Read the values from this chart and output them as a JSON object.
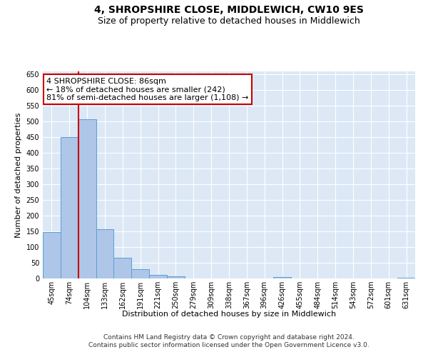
{
  "title": "4, SHROPSHIRE CLOSE, MIDDLEWICH, CW10 9ES",
  "subtitle": "Size of property relative to detached houses in Middlewich",
  "xlabel": "Distribution of detached houses by size in Middlewich",
  "ylabel": "Number of detached properties",
  "footer_line1": "Contains HM Land Registry data © Crown copyright and database right 2024.",
  "footer_line2": "Contains public sector information licensed under the Open Government Licence v3.0.",
  "categories": [
    "45sqm",
    "74sqm",
    "104sqm",
    "133sqm",
    "162sqm",
    "191sqm",
    "221sqm",
    "250sqm",
    "279sqm",
    "309sqm",
    "338sqm",
    "367sqm",
    "396sqm",
    "426sqm",
    "455sqm",
    "484sqm",
    "514sqm",
    "543sqm",
    "572sqm",
    "601sqm",
    "631sqm"
  ],
  "values": [
    148,
    450,
    507,
    158,
    67,
    30,
    12,
    7,
    0,
    0,
    0,
    0,
    0,
    5,
    0,
    0,
    0,
    0,
    0,
    0,
    3
  ],
  "bar_color": "#aec6e8",
  "bar_edge_color": "#5a9fd4",
  "vline_x": 1.5,
  "vline_color": "#cc0000",
  "annotation_line1": "4 SHROPSHIRE CLOSE: 86sqm",
  "annotation_line2": "← 18% of detached houses are smaller (242)",
  "annotation_line3": "81% of semi-detached houses are larger (1,108) →",
  "annotation_box_color": "#cc0000",
  "ylim": [
    0,
    660
  ],
  "yticks": [
    0,
    50,
    100,
    150,
    200,
    250,
    300,
    350,
    400,
    450,
    500,
    550,
    600,
    650
  ],
  "background_color": "#dce8f5",
  "grid_color": "#ffffff",
  "title_fontsize": 10,
  "subtitle_fontsize": 9,
  "ylabel_fontsize": 8,
  "xlabel_fontsize": 8,
  "tick_fontsize": 7,
  "annotation_fontsize": 8,
  "footer_fontsize": 6.5
}
